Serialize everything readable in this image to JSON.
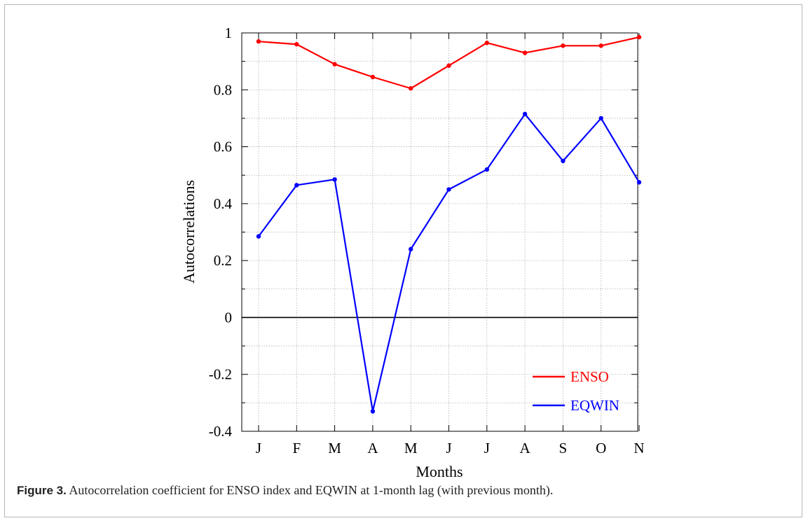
{
  "caption": {
    "label": "Figure 3.",
    "text": " Autocorrelation coefficient for ENSO index and EQWIN at 1-month lag (with previous month)."
  },
  "chart_data": {
    "type": "line",
    "xlabel": "Months",
    "ylabel": "Autocorrelations",
    "categories": [
      "J",
      "F",
      "M",
      "A",
      "M",
      "J",
      "J",
      "A",
      "S",
      "O",
      "N"
    ],
    "ylim": [
      -0.4,
      1
    ],
    "yticks": [
      "-0.4",
      "-0.2",
      "0",
      "0.2",
      "0.4",
      "0.6",
      "0.8",
      "1"
    ],
    "grid": true,
    "zero_line": true,
    "legend_position": "bottom-right",
    "series": [
      {
        "name": "ENSO",
        "color": "#ff0000",
        "values": [
          0.97,
          0.96,
          0.89,
          0.845,
          0.805,
          0.885,
          0.965,
          0.93,
          0.955,
          0.955,
          0.985
        ]
      },
      {
        "name": "EQWIN",
        "color": "#0000ff",
        "values": [
          0.285,
          0.465,
          0.485,
          -0.33,
          0.24,
          0.45,
          0.52,
          0.715,
          0.55,
          0.7,
          0.475
        ]
      }
    ]
  }
}
